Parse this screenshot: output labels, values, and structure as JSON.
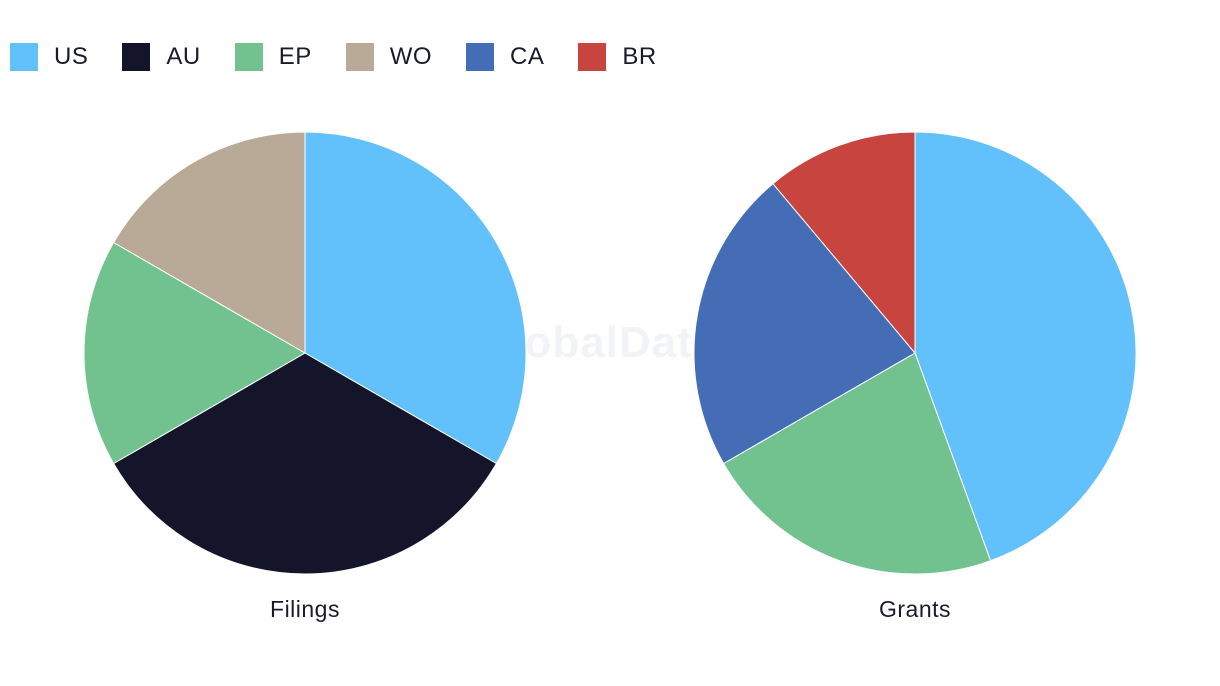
{
  "watermark": "GlobalData",
  "legend": [
    {
      "label": "US",
      "color": "#62c0fa"
    },
    {
      "label": "AU",
      "color": "#14152a"
    },
    {
      "label": "EP",
      "color": "#72c290"
    },
    {
      "label": "WO",
      "color": "#b8aa97"
    },
    {
      "label": "CA",
      "color": "#456db6"
    },
    {
      "label": "BR",
      "color": "#c8453f"
    }
  ],
  "chart_data": [
    {
      "type": "pie",
      "title": "Filings",
      "slices": [
        {
          "label": "US",
          "value": 2,
          "color": "#62c0fa"
        },
        {
          "label": "AU",
          "value": 2,
          "color": "#14152a"
        },
        {
          "label": "EP",
          "value": 1,
          "color": "#72c290"
        },
        {
          "label": "WO",
          "value": 1,
          "color": "#b8aa97"
        }
      ]
    },
    {
      "type": "pie",
      "title": "Grants",
      "slices": [
        {
          "label": "US",
          "value": 4,
          "color": "#62c0fa"
        },
        {
          "label": "EP",
          "value": 2,
          "color": "#72c290"
        },
        {
          "label": "CA",
          "value": 2,
          "color": "#456db6"
        },
        {
          "label": "BR",
          "value": 1,
          "color": "#c8453f"
        }
      ]
    }
  ]
}
